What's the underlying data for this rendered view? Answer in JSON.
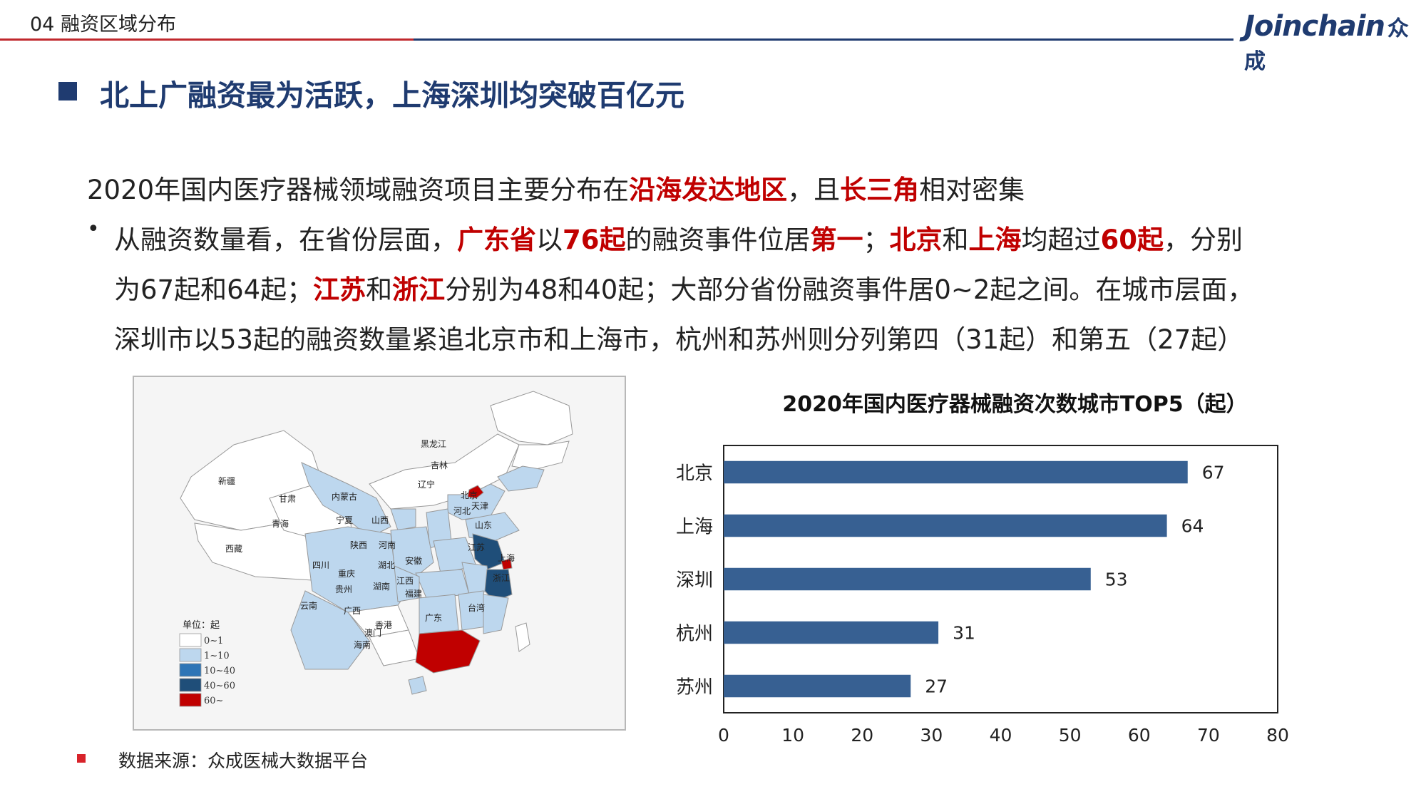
{
  "header": {
    "section_title": "04 融资区域分布",
    "logo_text": "Joinchain",
    "logo_cn": "众成"
  },
  "headline": "北上广融资最为活跃，上海深圳均突破百亿元",
  "intro": {
    "p1": "2020年国内医疗器械领域融资项目主要分布在",
    "h1": "沿海发达地区",
    "p2": "，且",
    "h2": "长三角",
    "p3": "相对密集"
  },
  "bullet": {
    "marker": "•",
    "l1": [
      {
        "t": "从融资数量看，在省份层面，",
        "h": false
      },
      {
        "t": "广东省",
        "h": true
      },
      {
        "t": "以",
        "h": false
      },
      {
        "t": "76起",
        "h": true
      },
      {
        "t": "的融资事件位居",
        "h": false
      },
      {
        "t": "第一",
        "h": true
      },
      {
        "t": "；",
        "h": false
      },
      {
        "t": "北京",
        "h": true
      },
      {
        "t": "和",
        "h": false
      },
      {
        "t": "上海",
        "h": true
      },
      {
        "t": "均超过",
        "h": false
      },
      {
        "t": "60起",
        "h": true
      },
      {
        "t": "，分别",
        "h": false
      }
    ],
    "l2": [
      {
        "t": "为67起和64起；",
        "h": false
      },
      {
        "t": "江苏",
        "h": true
      },
      {
        "t": "和",
        "h": false
      },
      {
        "t": "浙江",
        "h": true
      },
      {
        "t": "分别为48和40起；大部分省份融资事件居0~2起之间。在城市层面，",
        "h": false
      }
    ],
    "l3": "深圳市以53起的融资数量紧追北京市和上海市，杭州和苏州则分列第四（31起）和第五（27起）"
  },
  "map": {
    "legend_title": "单位：起",
    "legend": [
      {
        "label": "0~1",
        "color": "#ffffff"
      },
      {
        "label": "1~10",
        "color": "#bdd7ee"
      },
      {
        "label": "10~40",
        "color": "#2e75b6"
      },
      {
        "label": "40~60",
        "color": "#1f4e79"
      },
      {
        "label": "60~",
        "color": "#c00000"
      }
    ],
    "labels": [
      "黑龙江",
      "吉林",
      "辽宁",
      "新疆",
      "甘肃",
      "内蒙古",
      "北京",
      "天津",
      "河北",
      "宁夏",
      "山西",
      "青海",
      "山东",
      "陕西",
      "河南",
      "江苏",
      "上海",
      "西藏",
      "四川",
      "湖北",
      "安徽",
      "浙江",
      "重庆",
      "贵州",
      "湖南",
      "江西",
      "福建",
      "云南",
      "广西",
      "广东",
      "台湾",
      "香港",
      "澳门",
      "海南"
    ]
  },
  "chart_data": {
    "type": "bar",
    "orientation": "horizontal",
    "title": "2020年国内医疗器械融资次数城市TOP5（起）",
    "categories": [
      "北京",
      "上海",
      "深圳",
      "杭州",
      "苏州"
    ],
    "values": [
      67,
      64,
      53,
      31,
      27
    ],
    "xlim": [
      0,
      80
    ],
    "xticks": [
      0,
      10,
      20,
      30,
      40,
      50,
      60,
      70,
      80
    ],
    "bar_color": "#376092",
    "grid": false
  },
  "source": "数据来源：众成医械大数据平台"
}
